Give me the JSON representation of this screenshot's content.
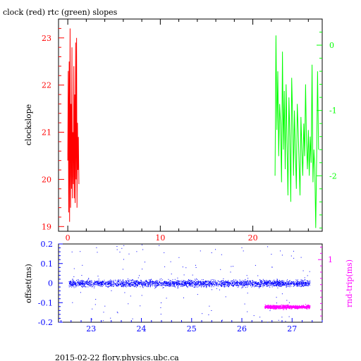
{
  "header": {
    "title": "clock (red) rtc (green) slopes"
  },
  "footer": {
    "caption": "2015-02-22 flory.physics.ubc.ca"
  },
  "colors": {
    "clock": "#ff0000",
    "rtc": "#00ff00",
    "offset": "#0000ff",
    "rndtrip": "#ff00ff",
    "axis": "#000000"
  },
  "chart_data": [
    {
      "type": "line",
      "title": "clock (red) rtc (green) slopes",
      "ylabel": "clockslope",
      "y2label": "",
      "xlim": [
        -1,
        27.5
      ],
      "ylim": [
        18.9,
        23.4
      ],
      "y2lim": [
        -2.85,
        0.4
      ],
      "x_ticks": [
        0,
        10,
        20
      ],
      "y_ticks": [
        19,
        20,
        21,
        22,
        23
      ],
      "y2_ticks": [
        0,
        -1,
        -2
      ],
      "series": [
        {
          "name": "clock",
          "axis": "left",
          "color": "#ff0000",
          "x": [
            0.0,
            0.05,
            0.1,
            0.15,
            0.2,
            0.25,
            0.3,
            0.35,
            0.4,
            0.45,
            0.5,
            0.55,
            0.6,
            0.65,
            0.7,
            0.75,
            0.8,
            0.85,
            0.9,
            0.95,
            1.0,
            1.05,
            1.1,
            1.15,
            1.2
          ],
          "y": [
            20.4,
            22.3,
            19.3,
            22.5,
            19.1,
            23.2,
            19.4,
            21.6,
            19.8,
            22.8,
            19.6,
            21.0,
            19.9,
            22.4,
            19.6,
            21.8,
            19.5,
            22.9,
            20.0,
            23.0,
            19.4,
            21.2,
            20.2,
            20.9,
            19.9
          ]
        },
        {
          "name": "rtc",
          "axis": "right",
          "color": "#00ff00",
          "x": [
            22.4,
            22.5,
            22.6,
            22.7,
            22.8,
            22.9,
            23.0,
            23.1,
            23.2,
            23.3,
            23.4,
            23.5,
            23.6,
            23.7,
            23.8,
            23.9,
            24.0,
            24.1,
            24.2,
            24.3,
            24.4,
            24.5,
            24.6,
            24.7,
            24.8,
            24.9,
            25.0,
            25.1,
            25.2,
            25.3,
            25.4,
            25.5,
            25.6,
            25.7,
            25.8,
            25.9,
            26.0,
            26.1,
            26.2,
            26.3,
            26.4,
            26.5,
            26.6,
            26.7,
            26.8,
            26.9,
            27.0,
            27.1
          ],
          "y": [
            -2.0,
            0.15,
            -1.3,
            -0.4,
            -1.7,
            -0.9,
            -1.2,
            -2.1,
            -0.1,
            -1.6,
            -0.7,
            -1.9,
            -0.6,
            -1.5,
            -2.3,
            -0.8,
            -1.4,
            -2.4,
            -0.5,
            -1.1,
            -2.0,
            -1.0,
            -1.6,
            -2.2,
            -0.9,
            -1.3,
            -1.8,
            -2.3,
            -1.1,
            -1.6,
            -2.0,
            -1.2,
            -1.7,
            -0.6,
            -1.5,
            -1.9,
            -1.3,
            -2.0,
            -1.4,
            -1.8,
            -0.3,
            -2.1,
            -1.6,
            -1.9,
            -2.8,
            -1.7,
            -0.4,
            -1.6
          ]
        }
      ]
    },
    {
      "type": "scatter",
      "ylabel": "offset(ms)",
      "y2label": "rnd-trip(ms)",
      "xlim": [
        22.35,
        27.6
      ],
      "ylim": [
        -0.2,
        0.2
      ],
      "y2lim": [
        0.0,
        1.25
      ],
      "x_ticks": [
        23,
        24,
        25,
        26,
        27
      ],
      "y_ticks": [
        0.2,
        0.1,
        0,
        -0.1,
        -0.2
      ],
      "y_tick_labels": [
        "0.2",
        "0.1",
        "0",
        "-0.1",
        "-0.2"
      ],
      "y2_ticks": [
        1
      ],
      "series": [
        {
          "name": "offset",
          "axis": "left",
          "color": "#0000ff",
          "x_range": [
            22.55,
            27.35
          ],
          "center": 0.0,
          "spread": 0.03
        },
        {
          "name": "rnd-trip",
          "axis": "right",
          "color": "#ff00ff",
          "x_range": [
            26.45,
            27.35
          ],
          "center": 0.25,
          "spread": 0.08
        }
      ]
    }
  ]
}
